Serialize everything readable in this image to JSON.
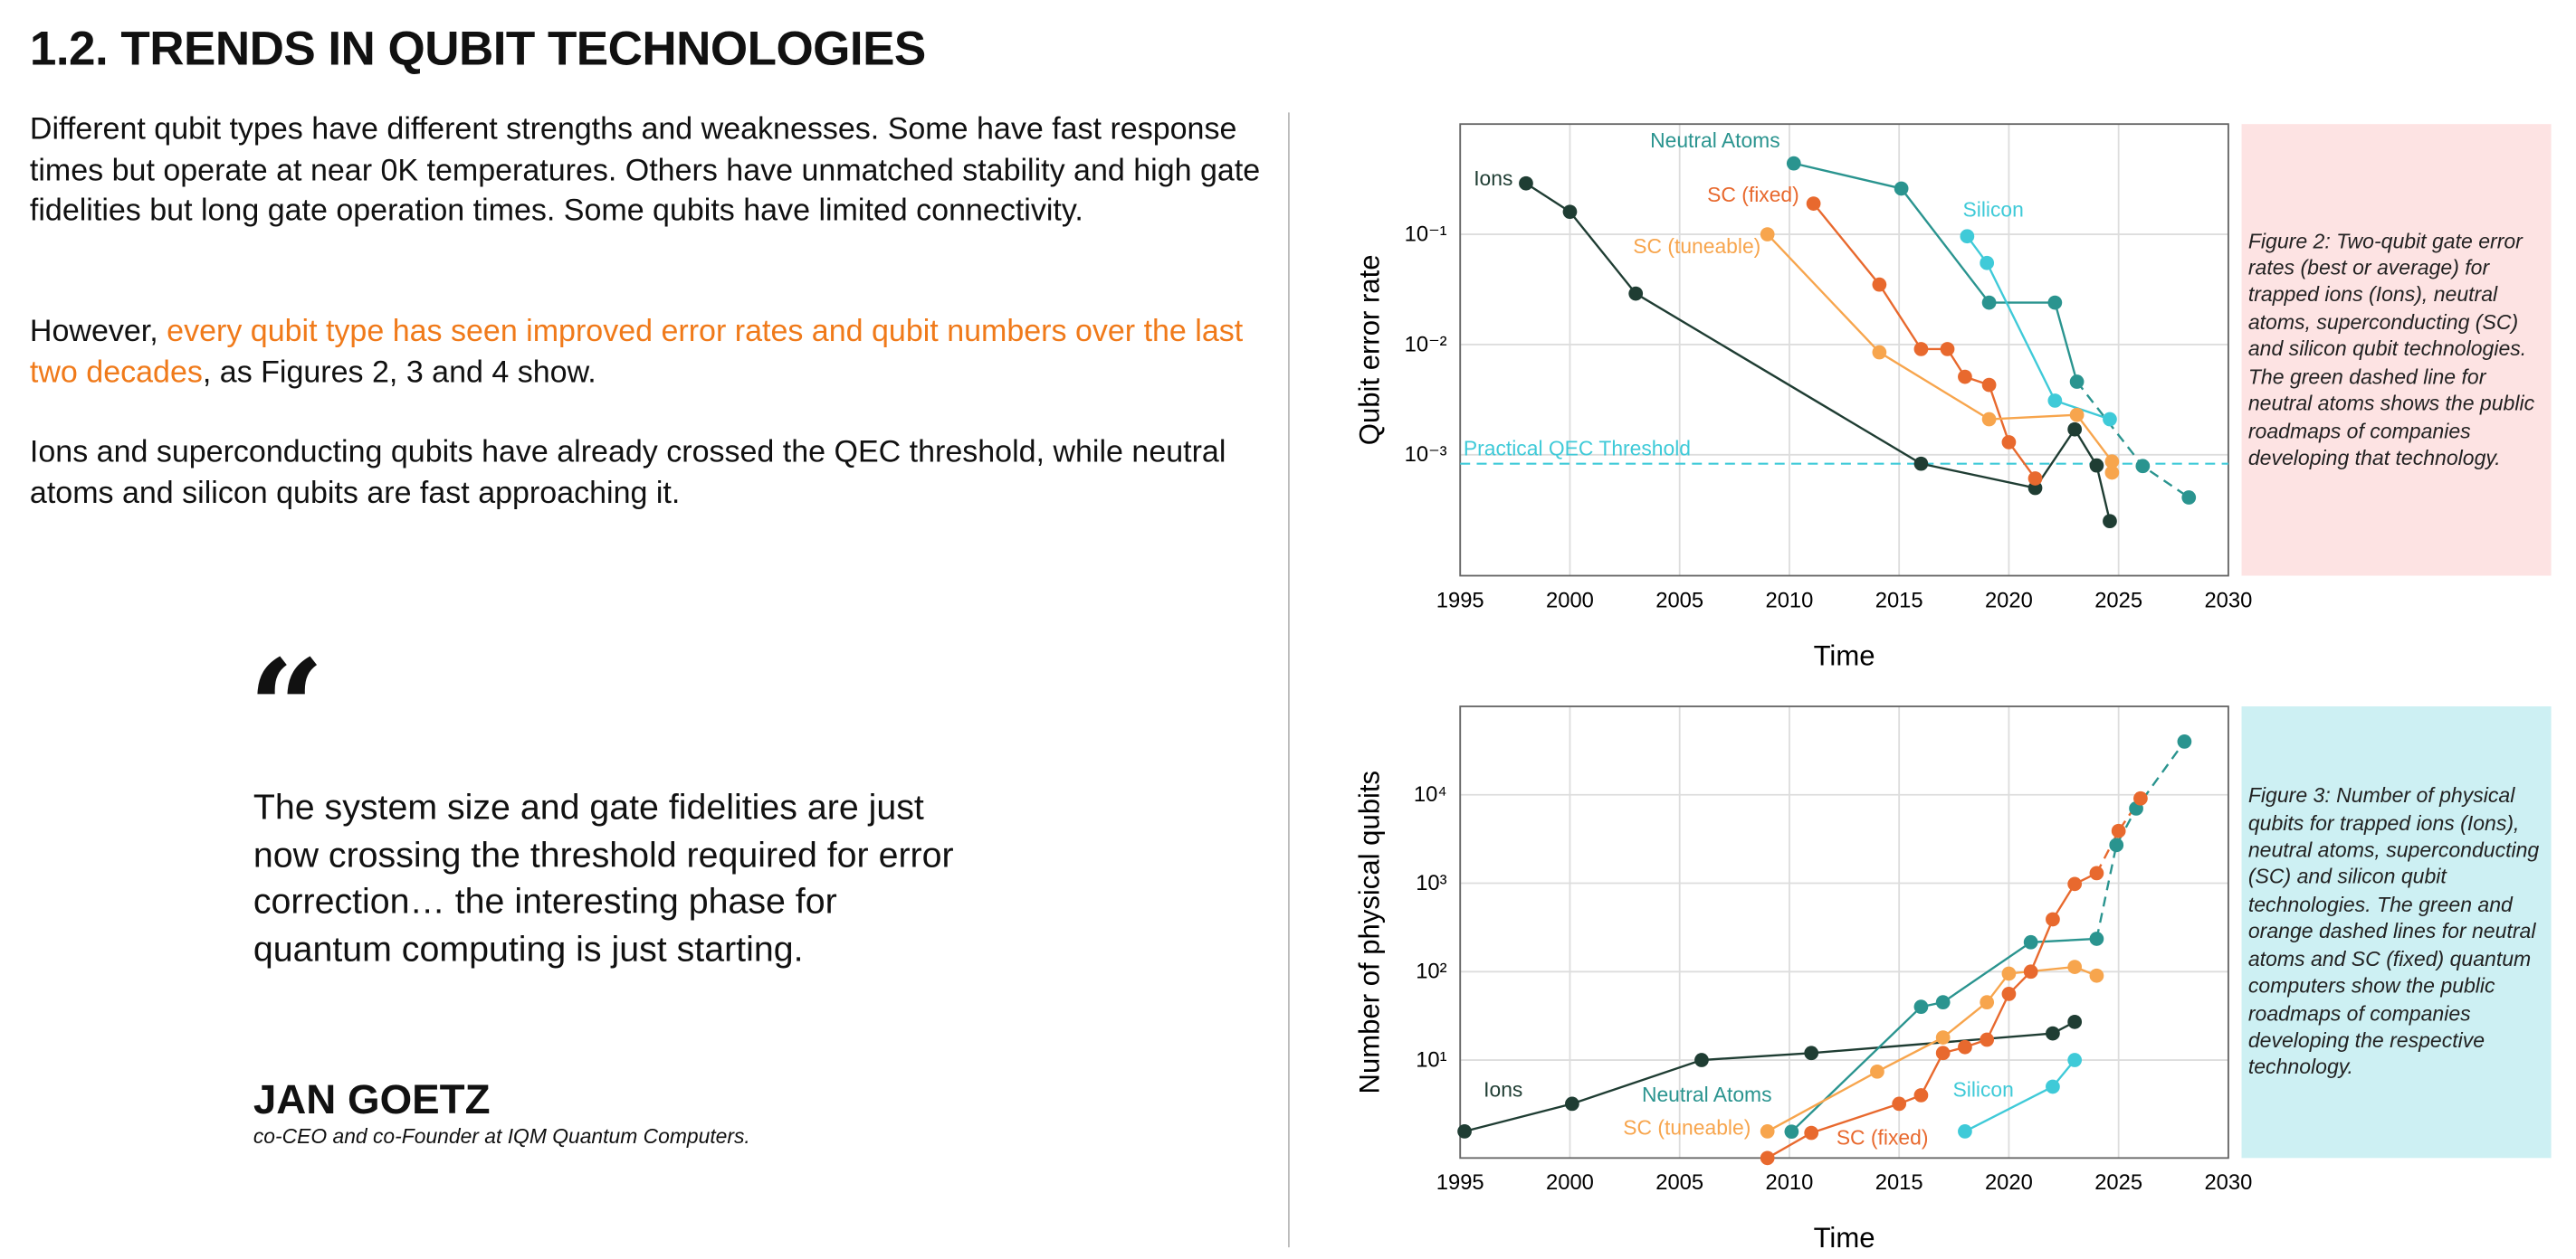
{
  "header": {
    "title": "1.2. TRENDS IN QUBIT TECHNOLOGIES"
  },
  "paragraphs": [
    [
      "Different qubit types have different strengths and weaknesses. Some have fast response times but operate at near 0K temperatures. Others have unmatched stability and high gate fidelities but long gate operation times. Some qubits have limited connectivity."
    ],
    [
      "However, ",
      "every qubit type has seen improved error rates and qubit numbers over the last two decades",
      ", as Figures 2, 3 and 4 show."
    ],
    [
      "Ions and superconducting qubits have already crossed the QEC threshold, while neutral atoms and silicon qubits are fast approaching it."
    ]
  ],
  "quote": {
    "mark": "“",
    "text": "The system size and gate fidelities are just now crossing the threshold required for error correction… the interesting phase for quantum computing is just starting.",
    "name": "JAN GOETZ",
    "role": "co-CEO and co-Founder at IQM Quantum Computers."
  },
  "captions": [
    "Figure 2: Two-qubit gate error rates (best or average) for trapped ions (Ions), neutral atoms, superconducting (SC) and silicon qubit technologies. The green dashed line for neutral atoms shows the public roadmaps of companies developing that technology.",
    "Figure 3: Number of physical qubits for trapped ions (Ions), neutral atoms, superconducting (SC) and silicon qubit technologies. The green and orange dashed lines for neutral atoms and SC (fixed) quantum computers show the public roadmaps of companies developing the respective technology."
  ],
  "chart_data": [
    {
      "type": "line",
      "x_label": "Time",
      "y_label": "Qubit error rate",
      "log_y": true,
      "grid": true,
      "xlim": [
        1995,
        2030
      ],
      "xticks": [
        1995,
        2000,
        2005,
        2010,
        2015,
        2020,
        2025,
        2030
      ],
      "ylim": [
        8e-05,
        1
      ],
      "yticks": [
        {
          "value": 0.1,
          "label": "10⁻¹"
        },
        {
          "value": 0.01,
          "label": "10⁻²"
        },
        {
          "value": 0.001,
          "label": "10⁻³"
        }
      ],
      "threshold": {
        "label": "Practical QEC Threshold",
        "value": 0.00083,
        "color": "#3fcad8"
      },
      "series": [
        {
          "name": "Ions",
          "color": "#1f3d33",
          "x": [
            1998,
            2000,
            2003,
            2016,
            2021.2,
            2023,
            2024,
            2024.6
          ],
          "values": [
            0.29,
            0.16,
            0.029,
            0.00083,
            0.0005,
            0.0017,
            0.0008,
            0.00025
          ]
        },
        {
          "name": "Neutral Atoms",
          "color": "#2a948f",
          "x": [
            2010.2,
            2015.1,
            2019.1,
            2022.1,
            2023.1
          ],
          "values": [
            0.44,
            0.26,
            0.024,
            0.024,
            0.0046
          ]
        },
        {
          "name": "SC (fixed)",
          "color": "#e8692e",
          "x": [
            2011.1,
            2014.1,
            2016,
            2017.2,
            2018,
            2019.1,
            2020,
            2021.2
          ],
          "values": [
            0.19,
            0.035,
            0.0091,
            0.0091,
            0.0051,
            0.0043,
            0.0013,
            0.00061
          ]
        },
        {
          "name": "SC (tuneable)",
          "color": "#f7a54d",
          "x": [
            2009,
            2014.1,
            2019.1,
            2023.1,
            2024.7,
            2024.7
          ],
          "values": [
            0.1,
            0.0085,
            0.0021,
            0.0023,
            0.00087,
            0.00069
          ]
        },
        {
          "name": "Silicon",
          "color": "#3fcad8",
          "x": [
            2018.1,
            2019,
            2022.1,
            2024.6
          ],
          "values": [
            0.096,
            0.055,
            0.0031,
            0.0021
          ]
        },
        {
          "color": "#2a948f",
          "dashed": true,
          "x": [
            2023.1,
            2026.1,
            2028.2
          ],
          "values": [
            0.0046,
            0.00079,
            0.00041
          ]
        }
      ]
    },
    {
      "type": "line",
      "x_label": "Time",
      "y_label": "Number of physical qubits",
      "log_y": true,
      "grid": true,
      "xlim": [
        1995,
        2030
      ],
      "xticks": [
        1995,
        2000,
        2005,
        2010,
        2015,
        2020,
        2025,
        2030
      ],
      "ylim": [
        0.78,
        100000
      ],
      "yticks": [
        {
          "value": 10,
          "label": "10¹"
        },
        {
          "value": 100,
          "label": "10²"
        },
        {
          "value": 1000,
          "label": "10³"
        },
        {
          "value": 10000,
          "label": "10⁴"
        }
      ],
      "series": [
        {
          "name": "Ions",
          "color": "#1f3d33",
          "x": [
            1995.2,
            2000.1,
            2006,
            2011,
            2022,
            2023
          ],
          "values": [
            1.56,
            3.2,
            10,
            12,
            20,
            27
          ]
        },
        {
          "name": "Neutral Atoms",
          "color": "#2a948f",
          "x": [
            2010.1,
            2016,
            2017,
            2021,
            2024
          ],
          "values": [
            1.55,
            40,
            45,
            215,
            235
          ]
        },
        {
          "name": "SC (fixed)",
          "color": "#e8692e",
          "x": [
            2009,
            2011,
            2015,
            2016,
            2017,
            2018,
            2019,
            2020,
            2021,
            2022,
            2023,
            2024
          ],
          "values": [
            0.78,
            1.5,
            3.2,
            4,
            12,
            14,
            17,
            56,
            100,
            390,
            980,
            1300
          ]
        },
        {
          "name": "SC (tuneable)",
          "color": "#f7a54d",
          "x": [
            2009,
            2014,
            2017,
            2019,
            2020,
            2023,
            2024
          ],
          "values": [
            1.56,
            7.4,
            18,
            45,
            95,
            113,
            90
          ]
        },
        {
          "name": "Silicon",
          "color": "#3fcad8",
          "x": [
            2018,
            2022,
            2023
          ],
          "values": [
            1.56,
            5,
            10
          ]
        },
        {
          "color": "#2a948f",
          "dashed": true,
          "x": [
            2024,
            2024.9,
            2025.8,
            2028
          ],
          "values": [
            235,
            2700,
            7000,
            40000
          ]
        },
        {
          "color": "#e8692e",
          "dashed": true,
          "x": [
            2024,
            2025,
            2026
          ],
          "values": [
            1300,
            3900,
            9100
          ]
        }
      ]
    }
  ]
}
